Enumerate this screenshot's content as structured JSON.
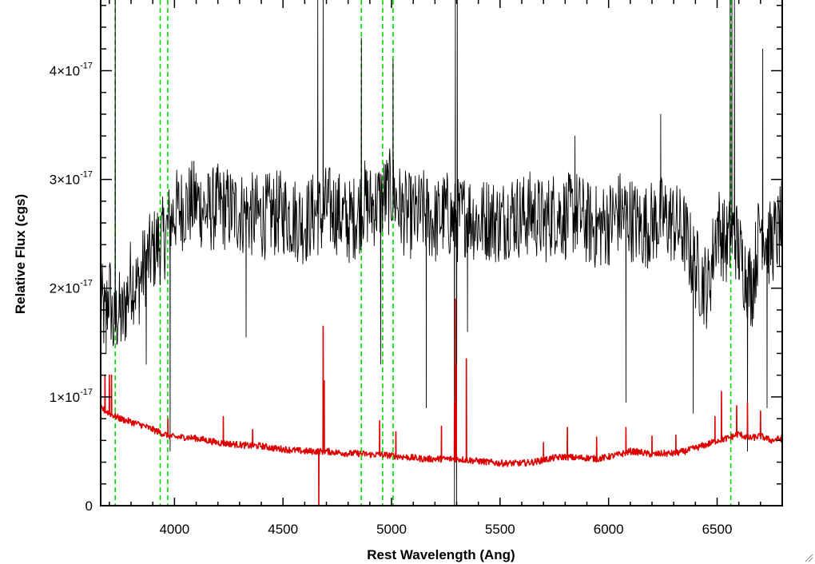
{
  "chart_data": {
    "type": "line",
    "title": "",
    "xlabel": "Rest Wavelength (Ang)",
    "ylabel": "Relative Flux (cgs)",
    "xlim": [
      3660,
      6800
    ],
    "ylim": [
      0,
      4.65e-17
    ],
    "x_ticks": [
      {
        "value": 4000,
        "label": "4000"
      },
      {
        "value": 4500,
        "label": "4500"
      },
      {
        "value": 5000,
        "label": "5000"
      },
      {
        "value": 5500,
        "label": "5500"
      },
      {
        "value": 6000,
        "label": "6000"
      },
      {
        "value": 6500,
        "label": "6500"
      }
    ],
    "y_ticks": [
      {
        "value": 0,
        "mantissa": "0",
        "exponent": ""
      },
      {
        "value": 1e-17,
        "mantissa": "1×10",
        "exponent": "-17"
      },
      {
        "value": 2e-17,
        "mantissa": "2×10",
        "exponent": "-17"
      },
      {
        "value": 3e-17,
        "mantissa": "3×10",
        "exponent": "-17"
      },
      {
        "value": 4e-17,
        "mantissa": "4×10",
        "exponent": "-17"
      }
    ],
    "grid": false,
    "legend": "none",
    "reference_lines": {
      "color": "#00dd00",
      "style": "dashed",
      "x": [
        3727,
        3934,
        3969,
        4861,
        4959,
        5007,
        6563
      ]
    },
    "series": [
      {
        "color": "#000000",
        "x": [
          3660,
          3680,
          3700,
          3720,
          3740,
          3760,
          3780,
          3800,
          3830,
          3860,
          3890,
          3920,
          3950,
          3980,
          4000,
          4050,
          4100,
          4150,
          4200,
          4300,
          4400,
          4500,
          4600,
          4650,
          4680,
          4700,
          4750,
          4800,
          4850,
          4870,
          4900,
          4950,
          5000,
          5050,
          5100,
          5150,
          5200,
          5250,
          5290,
          5320,
          5350,
          5400,
          5450,
          5500,
          5550,
          5600,
          5650,
          5700,
          5750,
          5800,
          5850,
          5900,
          5950,
          6000,
          6050,
          6100,
          6150,
          6200,
          6250,
          6300,
          6350,
          6380,
          6420,
          6460,
          6500,
          6540,
          6580,
          6620,
          6660,
          6700,
          6740,
          6780,
          6800
        ],
        "y": [
          1.9e-17,
          1.7e-17,
          2e-17,
          1.6e-17,
          1.8e-17,
          1.7e-17,
          1.9e-17,
          2.1e-17,
          2e-17,
          2.2e-17,
          2.3e-17,
          2.4e-17,
          2.45e-17,
          2.6e-17,
          2.7e-17,
          2.75e-17,
          2.8e-17,
          2.7e-17,
          2.75e-17,
          2.7e-17,
          2.65e-17,
          2.7e-17,
          2.6e-17,
          2.7e-17,
          2.65e-17,
          2.75e-17,
          2.7e-17,
          2.6e-17,
          2.7e-17,
          2.8e-17,
          2.75e-17,
          2.8e-17,
          2.9e-17,
          2.7e-17,
          2.65e-17,
          2.7e-17,
          2.6e-17,
          2.7e-17,
          2.6e-17,
          2.65e-17,
          2.7e-17,
          2.6e-17,
          2.65e-17,
          2.6e-17,
          2.7e-17,
          2.65e-17,
          2.7e-17,
          2.6e-17,
          2.7e-17,
          2.65e-17,
          2.7e-17,
          2.6e-17,
          2.55e-17,
          2.6e-17,
          2.7e-17,
          2.65e-17,
          2.55e-17,
          2.6e-17,
          2.65e-17,
          2.6e-17,
          2.5e-17,
          2.3e-17,
          2.1e-17,
          2e-17,
          2.6e-17,
          2.4e-17,
          2.5e-17,
          2.2e-17,
          2e-17,
          2.6e-17,
          2.4e-17,
          2.5e-17,
          2.6e-17
        ],
        "noise_amplitude": 4e-18,
        "spikes": [
          {
            "x": 3685,
            "y": 1.4e-17
          },
          {
            "x": 3727,
            "y": 4.65e-17
          },
          {
            "x": 3870,
            "y": 1.3e-17
          },
          {
            "x": 3980,
            "y": 5e-18
          },
          {
            "x": 4330,
            "y": 1.55e-17
          },
          {
            "x": 4660,
            "y": 4.65e-17
          },
          {
            "x": 4685,
            "y": 4.65e-17
          },
          {
            "x": 4861,
            "y": 4.3e-17
          },
          {
            "x": 4950,
            "y": 1.3e-17
          },
          {
            "x": 5007,
            "y": 4.1e-17
          },
          {
            "x": 5160,
            "y": 9e-18
          },
          {
            "x": 5290,
            "y": 0.0
          },
          {
            "x": 5294,
            "y": 4.65e-17
          },
          {
            "x": 5300,
            "y": 0.0
          },
          {
            "x": 5303,
            "y": 4.65e-17
          },
          {
            "x": 5350,
            "y": 1.6e-17
          },
          {
            "x": 5845,
            "y": 3.4e-17
          },
          {
            "x": 6080,
            "y": 9.5e-18
          },
          {
            "x": 6240,
            "y": 3.6e-17
          },
          {
            "x": 6390,
            "y": 8.5e-18
          },
          {
            "x": 6560,
            "y": 4.65e-17
          },
          {
            "x": 6568,
            "y": 4.65e-17
          },
          {
            "x": 6580,
            "y": 4.65e-17
          },
          {
            "x": 6640,
            "y": 5e-18
          },
          {
            "x": 6710,
            "y": 4.2e-17
          },
          {
            "x": 6730,
            "y": 9e-18
          }
        ]
      },
      {
        "color": "#dd0000",
        "x": [
          3660,
          3700,
          3750,
          3800,
          3850,
          3900,
          3950,
          4000,
          4050,
          4100,
          4150,
          4200,
          4250,
          4300,
          4350,
          4400,
          4450,
          4500,
          4550,
          4600,
          4650,
          4700,
          4750,
          4800,
          4850,
          4900,
          4950,
          5000,
          5050,
          5100,
          5150,
          5200,
          5250,
          5300,
          5350,
          5400,
          5450,
          5500,
          5550,
          5600,
          5650,
          5700,
          5750,
          5800,
          5850,
          5900,
          5950,
          6000,
          6050,
          6100,
          6150,
          6200,
          6250,
          6300,
          6350,
          6400,
          6450,
          6500,
          6550,
          6600,
          6650,
          6700,
          6750,
          6800
        ],
        "y": [
          9e-18,
          8.5e-18,
          8e-18,
          7.7e-18,
          7.4e-18,
          7e-18,
          6.6e-18,
          6.3e-18,
          6.3e-18,
          6.2e-18,
          6e-18,
          5.8e-18,
          5.7e-18,
          5.6e-18,
          5.5e-18,
          5.5e-18,
          5.3e-18,
          5.2e-18,
          5.1e-18,
          5e-18,
          5e-18,
          5e-18,
          4.9e-18,
          4.8e-18,
          4.8e-18,
          4.7e-18,
          4.7e-18,
          4.6e-18,
          4.5e-18,
          4.4e-18,
          4.3e-18,
          4.3e-18,
          4.3e-18,
          4.3e-18,
          4.2e-18,
          4.1e-18,
          4e-18,
          3.9e-18,
          3.9e-18,
          3.9e-18,
          4e-18,
          4.2e-18,
          4.4e-18,
          4.5e-18,
          4.4e-18,
          4.4e-18,
          4.3e-18,
          4.5e-18,
          4.7e-18,
          5e-18,
          4.9e-18,
          4.7e-18,
          4.8e-18,
          4.8e-18,
          5e-18,
          5.3e-18,
          5.6e-18,
          6e-18,
          6.2e-18,
          6.6e-18,
          6.2e-18,
          6.4e-18,
          6e-18,
          6.2e-18
        ],
        "noise_amplitude": 3e-19,
        "spikes": [
          {
            "x": 3680,
            "y": 1.2e-17
          },
          {
            "x": 3700,
            "y": 1.2e-17
          },
          {
            "x": 3710,
            "y": 1.2e-17
          },
          {
            "x": 3970,
            "y": 8e-18
          },
          {
            "x": 4225,
            "y": 8.2e-18
          },
          {
            "x": 4360,
            "y": 7e-18
          },
          {
            "x": 4665,
            "y": 0.0
          },
          {
            "x": 4685,
            "y": 1.65e-17
          },
          {
            "x": 4690,
            "y": 1.15e-17
          },
          {
            "x": 4945,
            "y": 7.8e-18
          },
          {
            "x": 5020,
            "y": 6.8e-18
          },
          {
            "x": 5230,
            "y": 7.3e-18
          },
          {
            "x": 5290,
            "y": 9.5e-18
          },
          {
            "x": 5294,
            "y": 1.9e-17
          },
          {
            "x": 5298,
            "y": 1.3e-17
          },
          {
            "x": 5345,
            "y": 1.35e-17
          },
          {
            "x": 5700,
            "y": 5.8e-18
          },
          {
            "x": 5810,
            "y": 7.2e-18
          },
          {
            "x": 5945,
            "y": 6.3e-18
          },
          {
            "x": 6080,
            "y": 7.2e-18
          },
          {
            "x": 6200,
            "y": 6.4e-18
          },
          {
            "x": 6310,
            "y": 6.5e-18
          },
          {
            "x": 6490,
            "y": 8.2e-18
          },
          {
            "x": 6520,
            "y": 1.05e-17
          },
          {
            "x": 6590,
            "y": 9.2e-18
          },
          {
            "x": 6640,
            "y": 9.5e-18
          },
          {
            "x": 6700,
            "y": 8.7e-18
          }
        ]
      }
    ]
  }
}
